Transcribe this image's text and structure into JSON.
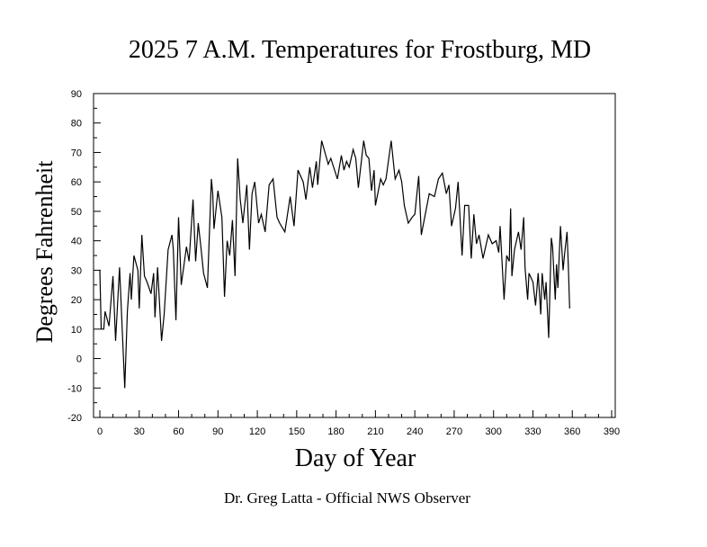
{
  "chart_data": {
    "type": "line",
    "title": "2025 7 A.M. Temperatures for Frostburg, MD",
    "xlabel": "Day of Year",
    "ylabel": "Degrees Fahrenheit",
    "footer": "Dr. Greg Latta - Official NWS Observer",
    "xlim": [
      0,
      390
    ],
    "ylim": [
      -20,
      90
    ],
    "xticks": [
      0,
      30,
      60,
      90,
      120,
      150,
      180,
      210,
      240,
      270,
      300,
      330,
      360,
      390
    ],
    "yticks": [
      -20,
      -10,
      0,
      10,
      20,
      30,
      40,
      50,
      60,
      70,
      80,
      90
    ],
    "grid": false,
    "line_color": "#000000",
    "series": [
      {
        "x": [
          0,
          1,
          3,
          4,
          7,
          10,
          12,
          15,
          19,
          21,
          23,
          24,
          26,
          29,
          30,
          32,
          34,
          36,
          39,
          41,
          42,
          44,
          47,
          49,
          52,
          55,
          56,
          58,
          60,
          62,
          66,
          68,
          71,
          73,
          75,
          77,
          79,
          82,
          85,
          86,
          87,
          90,
          93,
          95,
          97,
          99,
          101,
          103,
          105,
          107,
          109,
          112,
          114,
          116,
          118,
          121,
          123,
          126,
          129,
          132,
          135,
          137,
          141,
          145,
          148,
          151,
          155,
          157,
          160,
          162,
          165,
          166,
          169,
          174,
          176,
          181,
          184,
          186,
          188,
          190,
          193,
          195,
          197,
          201,
          203,
          205,
          207,
          209,
          210,
          214,
          216,
          218,
          222,
          225,
          228,
          230,
          232,
          235,
          238,
          240,
          243,
          245,
          248,
          251,
          255,
          258,
          261,
          264,
          266,
          268,
          271,
          273,
          276,
          278,
          281,
          283,
          285,
          287,
          289,
          292,
          296,
          299,
          302,
          304,
          305,
          308,
          310,
          312,
          313,
          314,
          316,
          319,
          321,
          323,
          324,
          326,
          327,
          330,
          332,
          334,
          336,
          337,
          339,
          340,
          342,
          344,
          345,
          347,
          348,
          349,
          351,
          353,
          354,
          356,
          357,
          358
        ],
        "y": [
          30,
          10,
          10,
          16,
          11,
          28,
          6,
          31,
          -10,
          16,
          29,
          20,
          35,
          30,
          17,
          42,
          28,
          26,
          22,
          29,
          14,
          31,
          6,
          15,
          37,
          42,
          37,
          13,
          48,
          25,
          38,
          33,
          54,
          33,
          46,
          38,
          29,
          24,
          61,
          56,
          44,
          57,
          48,
          21,
          40,
          35,
          47,
          28,
          68,
          54,
          46,
          59,
          37,
          56,
          60,
          46,
          49,
          43,
          59,
          61,
          48,
          46,
          43,
          55,
          45,
          64,
          60,
          54,
          65,
          58,
          67,
          59,
          74,
          66,
          68,
          61,
          69,
          64,
          67,
          65,
          71,
          68,
          58,
          74,
          69,
          68,
          57,
          64,
          52,
          61,
          59,
          61,
          74,
          61,
          64,
          60,
          52,
          46,
          48,
          49,
          62,
          42,
          49,
          56,
          55,
          61,
          63,
          56,
          59,
          45,
          51,
          60,
          35,
          52,
          52,
          34,
          49,
          39,
          42,
          34,
          42,
          39,
          40,
          36,
          45,
          20,
          35,
          33,
          51,
          28,
          37,
          43,
          37,
          48,
          31,
          20,
          29,
          26,
          18,
          29,
          15,
          29,
          20,
          26,
          7,
          41,
          38,
          20,
          32,
          24,
          45,
          30,
          35,
          43,
          31,
          17
        ]
      }
    ]
  }
}
